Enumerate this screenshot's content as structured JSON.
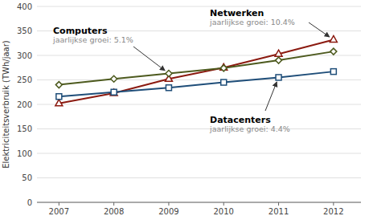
{
  "chart_data": {
    "type": "line",
    "x": [
      2007,
      2008,
      2009,
      2010,
      2011,
      2012
    ],
    "series": [
      {
        "name": "Netwerken",
        "color": "#8B1A10",
        "marker": "triangle",
        "values": [
          202,
          223,
          252,
          275,
          303,
          332
        ]
      },
      {
        "name": "Computers",
        "color": "#4D5A1E",
        "marker": "diamond",
        "values": [
          240,
          252,
          263,
          274,
          290,
          308
        ]
      },
      {
        "name": "Datacenters",
        "color": "#1F4E79",
        "marker": "square",
        "values": [
          216,
          225,
          234,
          245,
          255,
          267
        ]
      }
    ],
    "annotations": [
      "jaarlijkse groei: 10.4%",
      "jaarlijkse groei: 5.1%",
      "jaarlijkse groei: 4.4%"
    ],
    "y_label": "Elektriciteitsverbruik (TWh/jaar)",
    "xlim": [
      2006.6,
      2012.5
    ],
    "xticks": [
      2007,
      2008,
      2009,
      2010,
      2011,
      2012
    ],
    "ylim": [
      0,
      400
    ],
    "yticks": [
      0,
      50,
      100,
      150,
      200,
      250,
      300,
      350,
      400
    ],
    "grid": true
  }
}
